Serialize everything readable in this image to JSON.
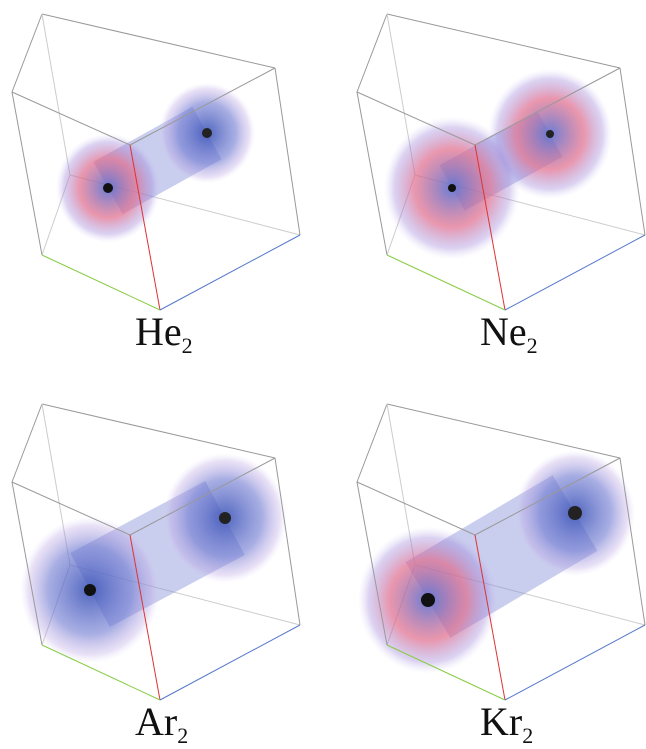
{
  "panels": [
    {
      "element": "He",
      "subscript": "2"
    },
    {
      "element": "Ne",
      "subscript": "2"
    },
    {
      "element": "Ar",
      "subscript": "2"
    },
    {
      "element": "Kr",
      "subscript": "2"
    }
  ]
}
